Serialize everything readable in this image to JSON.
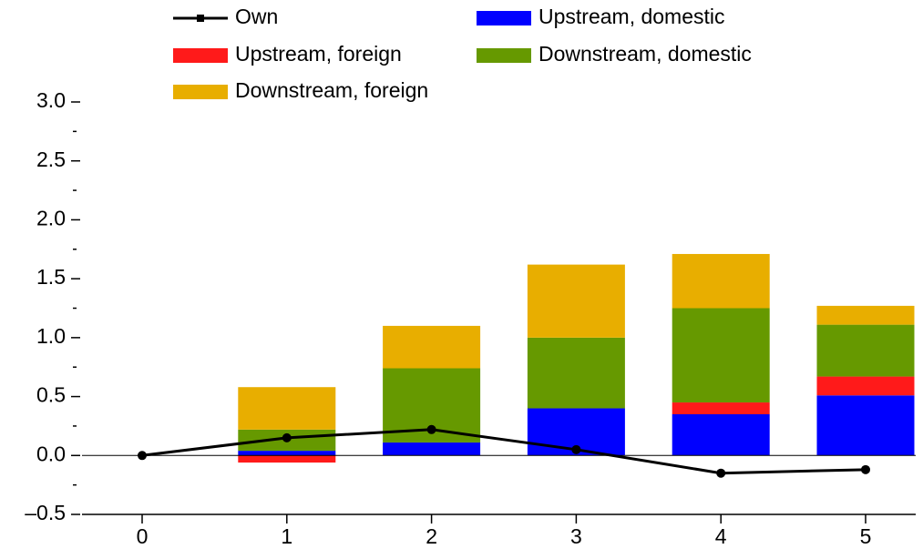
{
  "chart_data": {
    "type": "bar",
    "categories": [
      "0",
      "1",
      "2",
      "3",
      "4",
      "5"
    ],
    "series": [
      {
        "name": "Upstream, domestic",
        "color": "#0000ff",
        "values": [
          0,
          0.04,
          0.11,
          0.4,
          0.35,
          0.51
        ]
      },
      {
        "name": "Upstream, foreign",
        "color": "#ff1a1a",
        "values": [
          0,
          -0.06,
          0,
          0,
          0.1,
          0.16
        ]
      },
      {
        "name": "Downstream, domestic",
        "color": "#669900",
        "values": [
          0,
          0.18,
          0.63,
          0.6,
          0.8,
          0.44
        ]
      },
      {
        "name": "Downstream, foreign",
        "color": "#e8ae00",
        "values": [
          0,
          0.36,
          0.36,
          0.62,
          0.46,
          0.16
        ]
      },
      {
        "name": "Own",
        "type": "line",
        "color": "#000000",
        "values": [
          0,
          0.15,
          0.22,
          0.05,
          -0.15,
          -0.12
        ]
      }
    ],
    "legend_order": [
      4,
      0,
      1,
      2,
      3
    ],
    "ylim": [
      -0.5,
      3.0
    ],
    "yticks": [
      {
        "value": -0.5,
        "label": "–0.5"
      },
      {
        "value": 0,
        "label": "0.0"
      },
      0.5,
      {
        "value": 1,
        "label": "1.0"
      },
      1.5,
      {
        "value": 2,
        "label": "2.0"
      },
      2.5,
      {
        "value": 3,
        "label": "3.0"
      }
    ],
    "yminorticks": [
      -0.25,
      0.25,
      0.75,
      1.25,
      1.75,
      2.25,
      2.75
    ],
    "grid": false
  }
}
